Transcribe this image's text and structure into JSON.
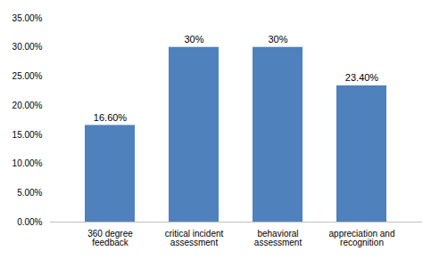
{
  "chart_data": {
    "type": "bar",
    "categories": [
      "360 degree\nfeedback",
      "critical incident\nassessment",
      "behavioral\nassessment",
      "appreciation and\nrecognition"
    ],
    "values": [
      16.6,
      30,
      30,
      23.4
    ],
    "value_labels": [
      "16.60%",
      "30%",
      "30%",
      "23.40%"
    ],
    "data_labels": true,
    "color": "#4f81bd",
    "ylim": [
      0,
      35
    ],
    "yticks": [
      {
        "value": 0,
        "label": "0.00%"
      },
      {
        "value": 5,
        "label": "5.00%"
      },
      {
        "value": 10,
        "label": "10.00%"
      },
      {
        "value": 15,
        "label": "15.00%"
      },
      {
        "value": 20,
        "label": "20.00%"
      },
      {
        "value": 25,
        "label": "25.00%"
      },
      {
        "value": 30,
        "label": "30.00%"
      },
      {
        "value": 35,
        "label": "35.00%"
      }
    ],
    "grid": false
  }
}
